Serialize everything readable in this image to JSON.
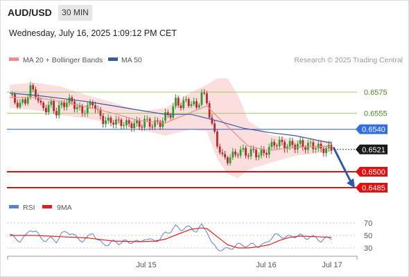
{
  "header": {
    "symbol": "AUD/USD",
    "timeframe": "30 MIN",
    "datetime": "Wednesday, July 16, 2025 1:09:12 PM CET"
  },
  "legend": {
    "ma20_label": "MA 20 + Bollinger Bands",
    "ma50_label": "MA 50",
    "ma20_color": "#f28b8b",
    "ma50_color": "#3b5a9a",
    "rsi_label": "RSI",
    "ma9_label": "9MA",
    "rsi_color": "#5a7fd6",
    "ma9_color": "#e02020"
  },
  "credit": "Research © 2025 Trading Central",
  "colors": {
    "up_candle": "#2e9a2e",
    "down_candle": "#b52a2a",
    "resistance_line": "#9ccc65",
    "pivot_line": "#3b6fe0",
    "support_line": "#e01010",
    "price_tag": "#1a1a1a",
    "pivot_tag": "#2f6fe0",
    "support_tag": "#e01010",
    "forecast_arrow": "#2a5aa8",
    "band_fill": "#fbd3d3"
  },
  "chart_data": [
    {
      "type": "candlestick",
      "name": "price",
      "x_ticks": [
        "Jul 15",
        "Jul 16",
        "Jul 17"
      ],
      "ylim": [
        0.6475,
        0.6595
      ],
      "levels": [
        {
          "label": "0.6575",
          "value": 0.6575,
          "kind": "resistance"
        },
        {
          "label": "0.6555",
          "value": 0.6555,
          "kind": "resistance"
        },
        {
          "label": "0.6540",
          "value": 0.654,
          "kind": "pivot"
        },
        {
          "label": "0.6500",
          "value": 0.65,
          "kind": "support"
        },
        {
          "label": "0.6485",
          "value": 0.6485,
          "kind": "support"
        }
      ],
      "last_price": {
        "label": "0.6521",
        "value": 0.6521
      },
      "forecast": {
        "from": 0.6523,
        "to": 0.6486,
        "direction": "down"
      },
      "close_path": [
        [
          0,
          0.6572
        ],
        [
          2,
          0.6566
        ],
        [
          4,
          0.6563
        ],
        [
          6,
          0.6567
        ],
        [
          8,
          0.6578
        ],
        [
          10,
          0.6574
        ],
        [
          12,
          0.6561
        ],
        [
          14,
          0.656
        ],
        [
          16,
          0.6563
        ],
        [
          18,
          0.6556
        ],
        [
          20,
          0.6563
        ],
        [
          22,
          0.6566
        ],
        [
          24,
          0.6566
        ],
        [
          26,
          0.656
        ],
        [
          28,
          0.6557
        ],
        [
          30,
          0.656
        ],
        [
          32,
          0.6566
        ],
        [
          34,
          0.6555
        ],
        [
          36,
          0.6549
        ],
        [
          38,
          0.6547
        ],
        [
          40,
          0.6548
        ],
        [
          42,
          0.6546
        ],
        [
          44,
          0.6546
        ],
        [
          46,
          0.6544
        ],
        [
          48,
          0.6546
        ],
        [
          50,
          0.6543
        ],
        [
          52,
          0.6548
        ],
        [
          54,
          0.6545
        ],
        [
          56,
          0.6545
        ],
        [
          58,
          0.6546
        ],
        [
          60,
          0.6552
        ],
        [
          62,
          0.6555
        ],
        [
          64,
          0.6566
        ],
        [
          66,
          0.6563
        ],
        [
          68,
          0.6566
        ],
        [
          70,
          0.6565
        ],
        [
          72,
          0.656
        ],
        [
          74,
          0.6574
        ],
        [
          76,
          0.6566
        ],
        [
          78,
          0.6543
        ],
        [
          80,
          0.6527
        ],
        [
          82,
          0.6513
        ],
        [
          84,
          0.6512
        ],
        [
          86,
          0.6515
        ],
        [
          88,
          0.6519
        ],
        [
          90,
          0.6519
        ],
        [
          92,
          0.6517
        ],
        [
          94,
          0.6519
        ],
        [
          96,
          0.6516
        ],
        [
          98,
          0.6518
        ],
        [
          100,
          0.6522
        ],
        [
          102,
          0.6527
        ],
        [
          104,
          0.6527
        ],
        [
          106,
          0.6525
        ],
        [
          108,
          0.6525
        ],
        [
          110,
          0.6525
        ],
        [
          112,
          0.6526
        ],
        [
          114,
          0.6524
        ],
        [
          116,
          0.6525
        ],
        [
          118,
          0.6524
        ],
        [
          120,
          0.6521
        ],
        [
          122,
          0.6522
        ],
        [
          124,
          0.6521
        ]
      ],
      "ma20": [
        [
          0,
          0.657
        ],
        [
          10,
          0.657
        ],
        [
          20,
          0.6566
        ],
        [
          30,
          0.6561
        ],
        [
          40,
          0.6555
        ],
        [
          50,
          0.6548
        ],
        [
          60,
          0.6546
        ],
        [
          70,
          0.6556
        ],
        [
          76,
          0.6562
        ],
        [
          80,
          0.6552
        ],
        [
          86,
          0.6538
        ],
        [
          92,
          0.6524
        ],
        [
          100,
          0.652
        ],
        [
          110,
          0.6523
        ],
        [
          124,
          0.6524
        ]
      ],
      "ma50": [
        [
          0,
          0.6574
        ],
        [
          10,
          0.6572
        ],
        [
          20,
          0.6569
        ],
        [
          30,
          0.6566
        ],
        [
          40,
          0.6562
        ],
        [
          50,
          0.6558
        ],
        [
          60,
          0.6554
        ],
        [
          70,
          0.6554
        ],
        [
          80,
          0.6548
        ],
        [
          90,
          0.6541
        ],
        [
          100,
          0.6537
        ],
        [
          110,
          0.6534
        ],
        [
          124,
          0.6527
        ]
      ],
      "bb_upper": [
        [
          0,
          0.6582
        ],
        [
          10,
          0.6584
        ],
        [
          20,
          0.658
        ],
        [
          30,
          0.6572
        ],
        [
          40,
          0.6565
        ],
        [
          50,
          0.6557
        ],
        [
          60,
          0.656
        ],
        [
          70,
          0.6575
        ],
        [
          76,
          0.6582
        ],
        [
          80,
          0.6588
        ],
        [
          84,
          0.6588
        ],
        [
          88,
          0.6572
        ],
        [
          92,
          0.6548
        ],
        [
          100,
          0.6535
        ],
        [
          110,
          0.653
        ],
        [
          124,
          0.6529
        ]
      ],
      "bb_lower": [
        [
          0,
          0.656
        ],
        [
          10,
          0.6558
        ],
        [
          20,
          0.6553
        ],
        [
          30,
          0.655
        ],
        [
          40,
          0.6545
        ],
        [
          50,
          0.654
        ],
        [
          60,
          0.6534
        ],
        [
          70,
          0.654
        ],
        [
          76,
          0.6538
        ],
        [
          80,
          0.6512
        ],
        [
          84,
          0.6498
        ],
        [
          88,
          0.6494
        ],
        [
          92,
          0.6502
        ],
        [
          100,
          0.6508
        ],
        [
          110,
          0.6515
        ],
        [
          124,
          0.6519
        ]
      ]
    },
    {
      "type": "line",
      "name": "rsi",
      "ylim": [
        20,
        80
      ],
      "y_ticks": [
        "70",
        "50",
        "30"
      ],
      "x_ticks": [
        "Jul 15",
        "Jul 16",
        "Jul 17"
      ],
      "series": [
        {
          "name": "RSI",
          "points": [
            [
              0,
              52
            ],
            [
              2,
              45
            ],
            [
              4,
              42
            ],
            [
              6,
              48
            ],
            [
              8,
              60
            ],
            [
              10,
              56
            ],
            [
              12,
              46
            ],
            [
              14,
              42
            ],
            [
              16,
              45
            ],
            [
              18,
              41
            ],
            [
              20,
              52
            ],
            [
              22,
              56
            ],
            [
              24,
              53
            ],
            [
              26,
              45
            ],
            [
              28,
              42
            ],
            [
              30,
              46
            ],
            [
              32,
              55
            ],
            [
              34,
              42
            ],
            [
              36,
              36
            ],
            [
              38,
              36
            ],
            [
              40,
              40
            ],
            [
              42,
              38
            ],
            [
              44,
              41
            ],
            [
              46,
              38
            ],
            [
              48,
              42
            ],
            [
              50,
              38
            ],
            [
              52,
              46
            ],
            [
              54,
              42
            ],
            [
              56,
              42
            ],
            [
              58,
              44
            ],
            [
              60,
              54
            ],
            [
              62,
              57
            ],
            [
              64,
              64
            ],
            [
              66,
              60
            ],
            [
              68,
              63
            ],
            [
              70,
              62
            ],
            [
              72,
              57
            ],
            [
              74,
              66
            ],
            [
              76,
              58
            ],
            [
              78,
              36
            ],
            [
              80,
              29
            ],
            [
              82,
              27
            ],
            [
              84,
              28
            ],
            [
              86,
              31
            ],
            [
              88,
              35
            ],
            [
              90,
              35
            ],
            [
              92,
              33
            ],
            [
              94,
              36
            ],
            [
              96,
              33
            ],
            [
              98,
              35
            ],
            [
              100,
              43
            ],
            [
              102,
              50
            ],
            [
              104,
              50
            ],
            [
              106,
              47
            ],
            [
              108,
              48
            ],
            [
              110,
              49
            ],
            [
              112,
              50
            ],
            [
              114,
              46
            ],
            [
              116,
              48
            ],
            [
              118,
              46
            ],
            [
              120,
              42
            ],
            [
              122,
              45
            ],
            [
              124,
              46
            ]
          ]
        },
        {
          "name": "9MA",
          "points": [
            [
              0,
              50
            ],
            [
              10,
              50
            ],
            [
              20,
              48
            ],
            [
              30,
              46
            ],
            [
              40,
              41
            ],
            [
              50,
              40
            ],
            [
              56,
              41
            ],
            [
              60,
              44
            ],
            [
              66,
              54
            ],
            [
              70,
              60
            ],
            [
              74,
              62
            ],
            [
              76,
              61
            ],
            [
              80,
              48
            ],
            [
              84,
              35
            ],
            [
              88,
              30
            ],
            [
              92,
              30
            ],
            [
              96,
              32
            ],
            [
              100,
              35
            ],
            [
              104,
              42
            ],
            [
              108,
              47
            ],
            [
              112,
              49
            ],
            [
              118,
              48
            ],
            [
              124,
              47
            ]
          ]
        }
      ]
    }
  ]
}
